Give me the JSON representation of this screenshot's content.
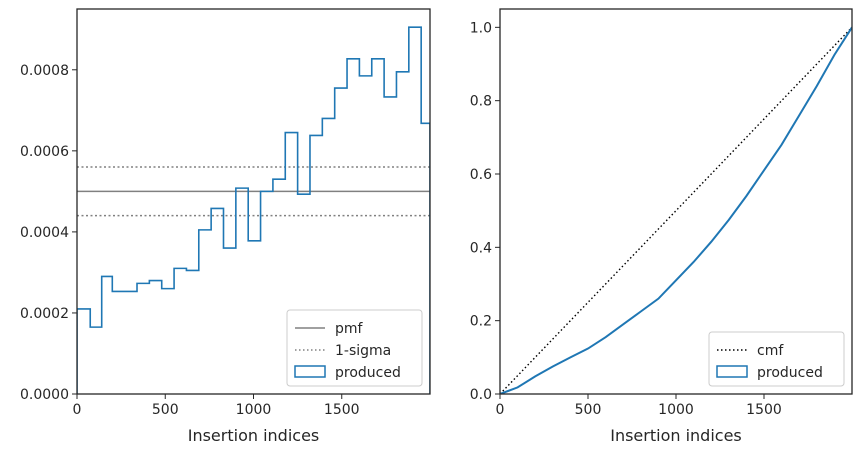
{
  "chart_data": [
    {
      "type": "step",
      "xlabel": "Insertion indices",
      "ylabel": "",
      "xlim": [
        0,
        2000
      ],
      "ylim": [
        0,
        0.00095
      ],
      "xticks": [
        0,
        500,
        1000,
        1500
      ],
      "xtick_labels": [
        "0",
        "500",
        "1000",
        "1500"
      ],
      "yticks": [
        0,
        0.0002,
        0.0004,
        0.0006,
        0.0008
      ],
      "ytick_labels": [
        "0.0000",
        "0.0002",
        "0.0004",
        "0.0006",
        "0.0008"
      ],
      "legend_position": "lower-right",
      "hlines": [
        {
          "name": "pmf",
          "y": 0.0005,
          "style": "solid",
          "color": "#808080"
        },
        {
          "name": "1-sigma",
          "y": 0.00044,
          "style": "dotted",
          "color": "#808080"
        },
        {
          "name": "1-sigma",
          "y": 0.00056,
          "style": "dotted",
          "color": "#808080"
        }
      ],
      "series": [
        {
          "name": "produced",
          "color": "#1f77b4",
          "bin_edges": [
            0,
            75,
            140,
            200,
            270,
            340,
            410,
            480,
            550,
            620,
            690,
            760,
            830,
            900,
            970,
            1040,
            1110,
            1180,
            1250,
            1320,
            1390,
            1460,
            1530,
            1600,
            1670,
            1740,
            1810,
            1880,
            1950,
            2000
          ],
          "values": [
            0.00021,
            0.000165,
            0.00029,
            0.000253,
            0.000253,
            0.000273,
            0.00028,
            0.00026,
            0.00031,
            0.000305,
            0.000405,
            0.000458,
            0.00036,
            0.000508,
            0.000378,
            0.0005,
            0.00053,
            0.000645,
            0.000493,
            0.000638,
            0.00068,
            0.000755,
            0.000827,
            0.000785,
            0.000827,
            0.000733,
            0.000795,
            0.000905,
            0.000668
          ]
        }
      ]
    },
    {
      "type": "line",
      "xlabel": "Insertion indices",
      "ylabel": "",
      "xlim": [
        0,
        2000
      ],
      "ylim": [
        0,
        1.05
      ],
      "xticks": [
        0,
        500,
        1000,
        1500
      ],
      "xtick_labels": [
        "0",
        "500",
        "1000",
        "1500"
      ],
      "yticks": [
        0,
        0.2,
        0.4,
        0.6,
        0.8,
        1.0
      ],
      "ytick_labels": [
        "0.0",
        "0.2",
        "0.4",
        "0.6",
        "0.8",
        "1.0"
      ],
      "legend_position": "lower-right",
      "series": [
        {
          "name": "cmf",
          "style": "dotted",
          "color": "#000000",
          "x": [
            0,
            2000
          ],
          "y": [
            0,
            1.0
          ]
        },
        {
          "name": "produced",
          "style": "solid",
          "color": "#1f77b4",
          "x": [
            0,
            100,
            200,
            300,
            400,
            500,
            600,
            700,
            800,
            900,
            1000,
            1100,
            1200,
            1300,
            1400,
            1500,
            1600,
            1700,
            1800,
            1900,
            2000
          ],
          "y": [
            0,
            0.018,
            0.048,
            0.075,
            0.1,
            0.124,
            0.155,
            0.19,
            0.225,
            0.26,
            0.31,
            0.36,
            0.415,
            0.475,
            0.54,
            0.61,
            0.68,
            0.76,
            0.84,
            0.925,
            1.0
          ]
        }
      ]
    }
  ]
}
